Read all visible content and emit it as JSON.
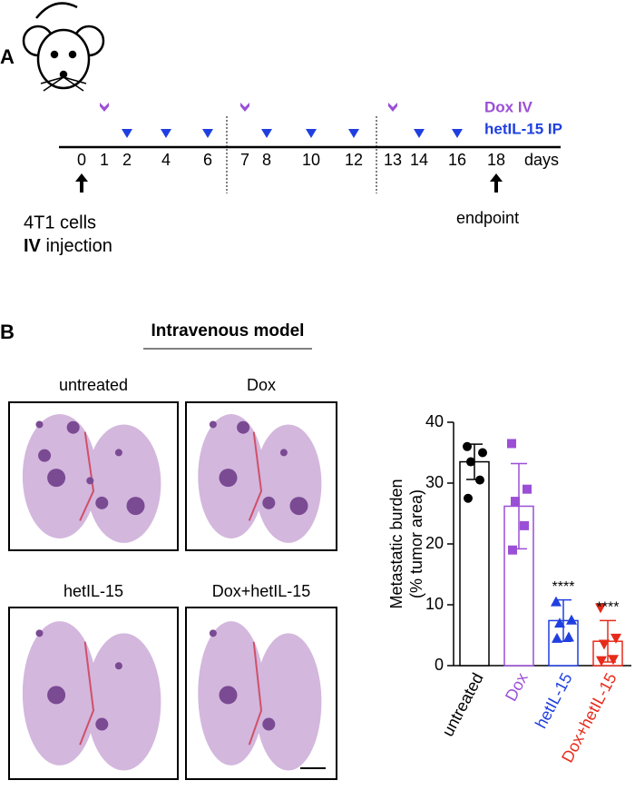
{
  "panel_a": {
    "label": "A",
    "days": [
      0,
      1,
      2,
      4,
      6,
      7,
      8,
      10,
      12,
      13,
      14,
      16,
      18
    ],
    "days_label": "days",
    "dox_days": [
      1,
      7,
      13
    ],
    "hetil_days": [
      2,
      4,
      6,
      8,
      10,
      12,
      14,
      16
    ],
    "legend_dox": "Dox IV",
    "legend_hetil": "hetIL-15 IP",
    "start_text": "4T1 cells",
    "start_route": "IV",
    "start_text2": "injection",
    "end_text": "endpoint"
  },
  "panel_b": {
    "label": "B",
    "title": "Intravenous model",
    "images": [
      "untreated",
      "Dox",
      "hetIL-15",
      "Dox+hetIL-15"
    ]
  },
  "chart_data": {
    "type": "bar",
    "y_label": "Metastatic burden",
    "y_label2": "(% tumor area)",
    "categories": [
      "untreated",
      "Dox",
      "hetIL-15",
      "Dox+hetIL-15"
    ],
    "colors": [
      "#000000",
      "#9b4fd6",
      "#1f3fe0",
      "#e82a1a"
    ],
    "markers": [
      "circle",
      "square",
      "triangle-up",
      "triangle-down"
    ],
    "values": [
      33.5,
      26.2,
      7.4,
      4.0
    ],
    "errors": [
      2.9,
      7.0,
      3.4,
      3.4
    ],
    "points": [
      [
        36,
        35,
        33.5,
        30.5,
        27.5
      ],
      [
        36.5,
        29,
        27,
        23,
        19
      ],
      [
        10.5,
        7.5,
        7,
        4.7,
        4.5
      ],
      [
        9.5,
        4.5,
        3.5,
        1,
        0.8
      ]
    ],
    "annotations": [
      null,
      null,
      "****",
      "****"
    ],
    "ylim": [
      0,
      40
    ],
    "yticks": [
      0,
      10,
      20,
      30,
      40
    ]
  }
}
